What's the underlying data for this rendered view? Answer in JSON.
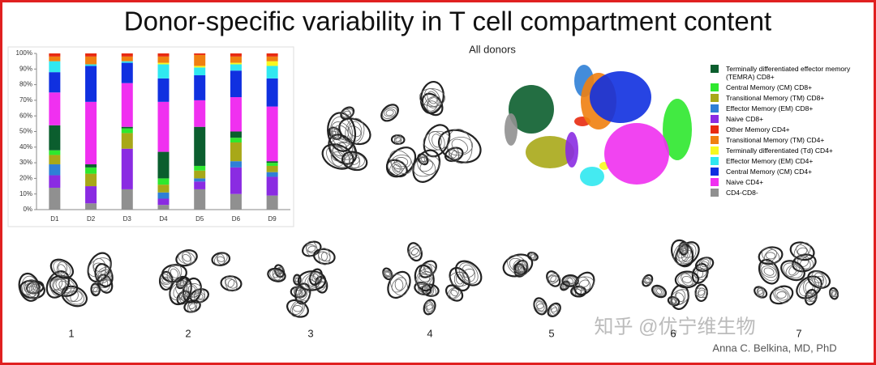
{
  "slide": {
    "title": "Donor-specific variability in T cell compartment content",
    "panel_label": "All donors",
    "donor_labels": [
      "1",
      "2",
      "3",
      "4",
      "5",
      "6",
      "7"
    ],
    "watermark": "知乎 @优宁维生物",
    "credit": "Anna C. Belkina, MD, PhD"
  },
  "chart_data": {
    "type": "stacked_bar",
    "categories": [
      "D1",
      "D2",
      "D3",
      "D4",
      "D5",
      "D6",
      "D9"
    ],
    "ylim": [
      0,
      100
    ],
    "yticks": [
      {
        "value": 0,
        "label": "0%"
      },
      {
        "value": 10,
        "label": "10%"
      },
      {
        "value": 20,
        "label": "20%"
      },
      {
        "value": 30,
        "label": "30%"
      },
      {
        "value": 40,
        "label": "40%"
      },
      {
        "value": 50,
        "label": "50%"
      },
      {
        "value": 60,
        "label": "60%"
      },
      {
        "value": 70,
        "label": "70%"
      },
      {
        "value": 80,
        "label": "80%"
      },
      {
        "value": 90,
        "label": "90%"
      },
      {
        "value": 100,
        "label": "100%"
      }
    ],
    "series": [
      {
        "name": "Terminally differentiated effector memory (TEMRA) CD8+",
        "color": "#0b5e2e",
        "values": [
          16,
          2,
          1,
          17,
          25,
          4,
          1
        ]
      },
      {
        "name": "Central Memory (CM) CD8+",
        "color": "#2ee82e",
        "values": [
          3,
          4,
          3,
          4,
          3,
          3,
          2
        ]
      },
      {
        "name": "Transitional Memory (TM) CD8+",
        "color": "#a8a818",
        "values": [
          6,
          8,
          10,
          5,
          5,
          12,
          4
        ]
      },
      {
        "name": "Effector Memory (EM) CD8+",
        "color": "#2f7fd6",
        "values": [
          7,
          0,
          0,
          4,
          2,
          4,
          3
        ]
      },
      {
        "name": "Naive CD8+",
        "color": "#8a2be2",
        "values": [
          8,
          11,
          26,
          4,
          5,
          17,
          12
        ]
      },
      {
        "name": "Other Memory CD4+",
        "color": "#e82a10",
        "values": [
          2,
          2,
          2,
          2,
          1,
          2,
          2
        ]
      },
      {
        "name": "Transitional Memory (TM) CD4+",
        "color": "#f08010",
        "values": [
          3,
          5,
          3,
          4,
          7,
          4,
          3
        ]
      },
      {
        "name": "Terminally differentiated (Td) CD4+",
        "color": "#f8f820",
        "values": [
          0,
          0,
          0,
          1,
          1,
          1,
          3
        ]
      },
      {
        "name": "Effector Memory (EM) CD4+",
        "color": "#30e8f0",
        "values": [
          7,
          1,
          1,
          9,
          5,
          4,
          8
        ]
      },
      {
        "name": "Central Memory (CM) CD4+",
        "color": "#1030e0",
        "values": [
          13,
          23,
          13,
          15,
          16,
          17,
          18
        ]
      },
      {
        "name": "Naive CD4+",
        "color": "#f030f0",
        "values": [
          21,
          40,
          28,
          32,
          17,
          22,
          35
        ]
      },
      {
        "name": "CD4-CD8-",
        "color": "#909090",
        "values": [
          14,
          4,
          13,
          3,
          13,
          10,
          9
        ]
      }
    ]
  }
}
